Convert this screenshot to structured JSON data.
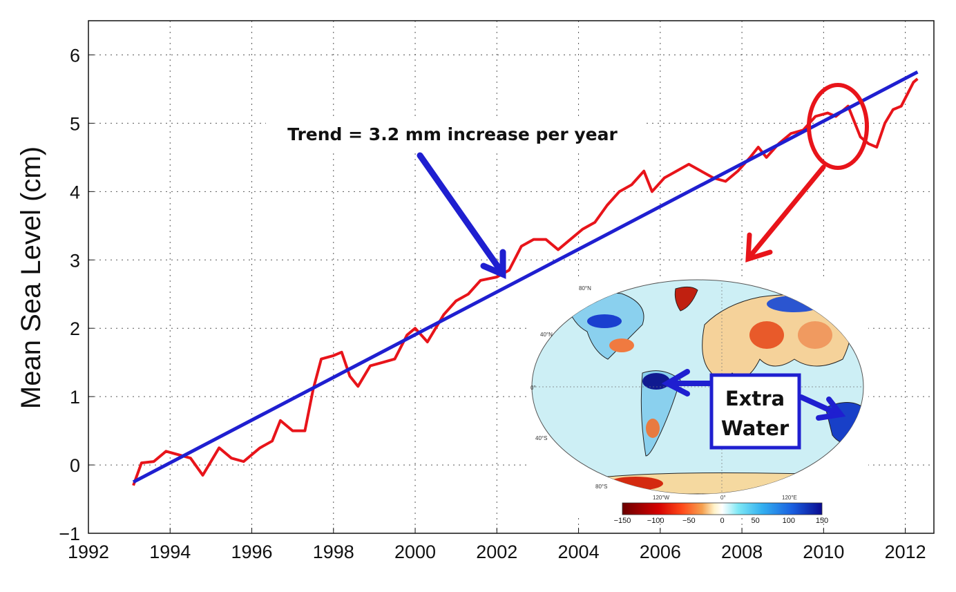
{
  "chart_data": {
    "type": "line",
    "title": "",
    "xlabel": "",
    "ylabel": "Mean Sea Level (cm)",
    "xlim": [
      1992,
      2012.7
    ],
    "ylim": [
      -1,
      6.5
    ],
    "xticks": [
      1992,
      1994,
      1996,
      1998,
      2000,
      2002,
      2004,
      2006,
      2008,
      2010,
      2012
    ],
    "yticks": [
      -1,
      0,
      1,
      2,
      3,
      4,
      5,
      6
    ],
    "ytick_labels": [
      "−1",
      "0",
      "1",
      "2",
      "3",
      "4",
      "5",
      "6"
    ],
    "grid": true,
    "series": [
      {
        "color": "#e8141a",
        "x": [
          1993.1,
          1993.3,
          1993.6,
          1993.9,
          1994.2,
          1994.5,
          1994.8,
          1995.2,
          1995.5,
          1995.8,
          1996.2,
          1996.5,
          1996.7,
          1997.0,
          1997.3,
          1997.5,
          1997.7,
          1998.0,
          1998.2,
          1998.4,
          1998.6,
          1998.9,
          1999.2,
          1999.5,
          1999.8,
          2000.0,
          2000.3,
          2000.5,
          2000.7,
          2001.0,
          2001.3,
          2001.6,
          2002.0,
          2002.3,
          2002.6,
          2002.9,
          2003.2,
          2003.5,
          2003.8,
          2004.1,
          2004.4,
          2004.7,
          2005.0,
          2005.3,
          2005.6,
          2005.8,
          2006.1,
          2006.4,
          2006.7,
          2007.0,
          2007.3,
          2007.6,
          2007.9,
          2008.2,
          2008.4,
          2008.6,
          2008.9,
          2009.2,
          2009.5,
          2009.8,
          2010.1,
          2010.3,
          2010.6,
          2010.9,
          2011.1,
          2011.3,
          2011.5,
          2011.7,
          2011.9,
          2012.2,
          2012.3
        ],
        "y": [
          -0.3,
          0.03,
          0.05,
          0.2,
          0.15,
          0.1,
          -0.15,
          0.25,
          0.1,
          0.05,
          0.25,
          0.35,
          0.65,
          0.5,
          0.5,
          1.1,
          1.55,
          1.6,
          1.65,
          1.3,
          1.15,
          1.45,
          1.5,
          1.55,
          1.9,
          2.0,
          1.8,
          2.0,
          2.2,
          2.4,
          2.5,
          2.7,
          2.75,
          2.85,
          3.2,
          3.3,
          3.3,
          3.15,
          3.3,
          3.45,
          3.55,
          3.8,
          4.0,
          4.1,
          4.3,
          4.0,
          4.2,
          4.3,
          4.4,
          4.3,
          4.2,
          4.15,
          4.3,
          4.5,
          4.65,
          4.5,
          4.7,
          4.85,
          4.9,
          5.1,
          5.15,
          5.1,
          5.25,
          4.8,
          4.7,
          4.65,
          5.0,
          5.2,
          5.25,
          5.6,
          5.65
        ]
      },
      {
        "color": "#1f1fd0",
        "x": [
          1993.1,
          2012.3
        ],
        "y": [
          -0.25,
          5.75
        ]
      }
    ],
    "annotations": {
      "trend_text": "Trend = 3.2 mm increase per year",
      "box_line1": "Extra",
      "box_line2": "Water"
    },
    "inset_map": {
      "lat_labels": [
        "80°N",
        "40°N",
        "0°",
        "40°S",
        "80°S"
      ],
      "lon_labels": [
        "120°W",
        "0°",
        "120°E"
      ],
      "colorbar_ticks": [
        "−150",
        "−100",
        "−50",
        "0",
        "50",
        "100",
        "150"
      ],
      "colorbar_colors": [
        "#6b0000",
        "#d40000",
        "#ff4a1a",
        "#f5a050",
        "#fff2c8",
        "#ffffff",
        "#7fe8f5",
        "#33b0f0",
        "#1a60e0",
        "#0a0a90"
      ]
    }
  }
}
